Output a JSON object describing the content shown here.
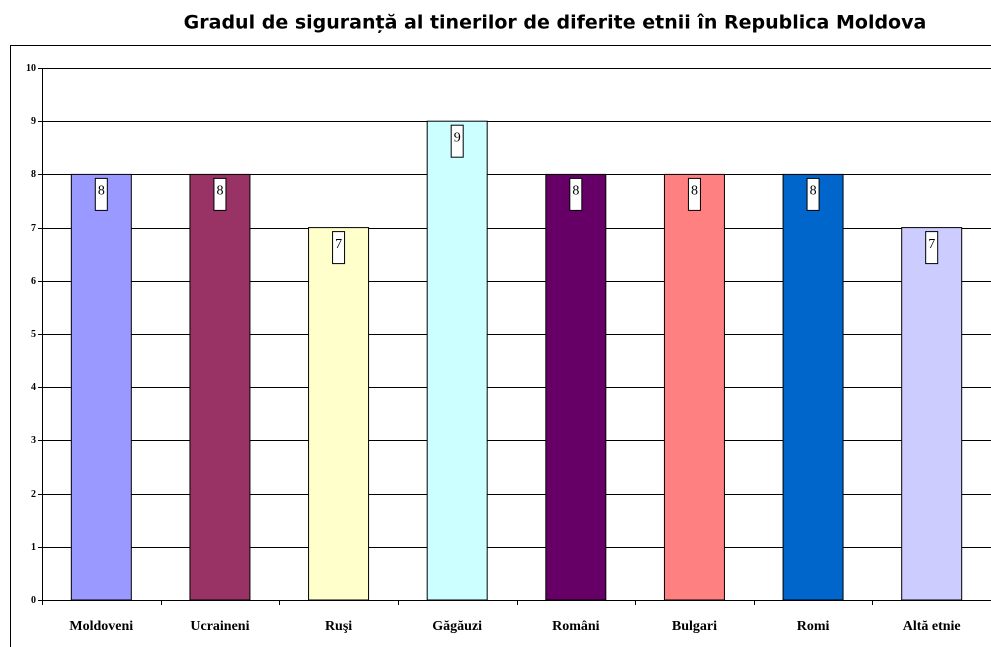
{
  "chart_data": {
    "type": "bar",
    "title": "Gradul de siguranță al tinerilor de diferite etnii în Republica Moldova",
    "categories": [
      "Moldoveni",
      "Ucraineni",
      "Ruşi",
      "Găgăuzi",
      "Români",
      "Bulgari",
      "Romi",
      "Altă etnie"
    ],
    "values": [
      8,
      8,
      7,
      9,
      8,
      8,
      8,
      7
    ],
    "colors": [
      "#9999ff",
      "#993366",
      "#ffffcc",
      "#ccffff",
      "#660066",
      "#ff8080",
      "#0066cc",
      "#ccccff"
    ],
    "ylim": [
      0,
      10
    ],
    "yticks": [
      0,
      1,
      2,
      3,
      4,
      5,
      6,
      7,
      8,
      9,
      10
    ],
    "grid": true
  }
}
